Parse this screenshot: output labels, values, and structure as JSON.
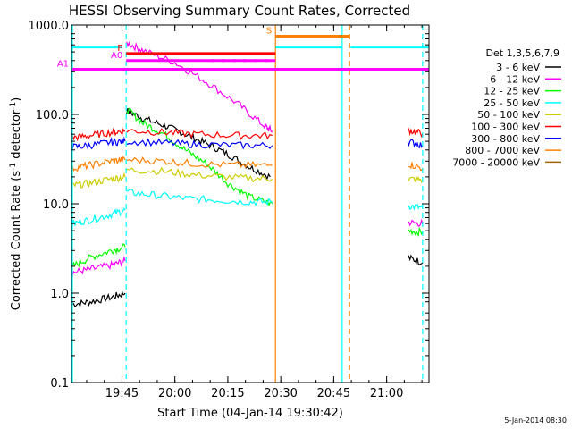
{
  "chart_data": {
    "type": "line",
    "title": "HESSI Observing Summary Count Rates, Corrected",
    "xlabel": "Start Time (04-Jan-14 19:30:42)",
    "ylabel_prefix": "Corrected Count Rate (s",
    "ylabel_sup1": "-1",
    "ylabel_mid": " detector",
    "ylabel_sup2": "-1",
    "ylabel_suffix": ")",
    "yscale": "log",
    "ylim": [
      0.1,
      1000
    ],
    "xlim": [
      19.5117,
      21.2
    ],
    "x_ticks": [
      {
        "value": 19.75,
        "label": "19:45"
      },
      {
        "value": 20.0,
        "label": "20:00"
      },
      {
        "value": 20.25,
        "label": "20:15"
      },
      {
        "value": 20.5,
        "label": "20:30"
      },
      {
        "value": 20.75,
        "label": "20:45"
      },
      {
        "value": 21.0,
        "label": "21:00"
      }
    ],
    "y_ticks": [
      {
        "value": 0.1,
        "label": "0.1"
      },
      {
        "value": 1,
        "label": "1.0"
      },
      {
        "value": 10,
        "label": "10.0"
      },
      {
        "value": 100,
        "label": "100.0"
      },
      {
        "value": 1000,
        "label": "1000.0"
      }
    ],
    "legend_title": "Det 1,3,5,6,7,9",
    "legend_position": "right",
    "date_stamp": "5-Jan-2014 08:30",
    "series": [
      {
        "name": "3 - 6 keV",
        "color": "#000000",
        "segments": [
          [
            [
              19.516,
              0.75
            ],
            [
              19.6,
              0.8
            ],
            [
              19.7,
              0.9
            ],
            [
              19.765,
              1.0
            ]
          ],
          [
            [
              19.772,
              110
            ],
            [
              19.85,
              90
            ],
            [
              19.95,
              75
            ],
            [
              20.05,
              60
            ],
            [
              20.15,
              47
            ],
            [
              20.25,
              36
            ],
            [
              20.35,
              26
            ],
            [
              20.45,
              20
            ]
          ],
          [
            [
              21.1,
              2.5
            ],
            [
              21.17,
              2.2
            ]
          ]
        ]
      },
      {
        "name": "6 - 12 keV",
        "color": "#ff00ff",
        "segments": [
          [
            [
              19.516,
              1.7
            ],
            [
              19.6,
              1.85
            ],
            [
              19.7,
              2.05
            ],
            [
              19.765,
              2.3
            ]
          ],
          [
            [
              19.772,
              630
            ],
            [
              19.85,
              520
            ],
            [
              20.0,
              380
            ],
            [
              20.15,
              230
            ],
            [
              20.3,
              130
            ],
            [
              20.42,
              75
            ],
            [
              20.46,
              65
            ]
          ],
          [
            [
              21.1,
              6.2
            ],
            [
              21.17,
              6.0
            ]
          ]
        ]
      },
      {
        "name": "12 - 25 keV",
        "color": "#00ff00",
        "segments": [
          [
            [
              19.516,
              2.0
            ],
            [
              19.6,
              2.5
            ],
            [
              19.7,
              3.0
            ],
            [
              19.765,
              3.3
            ]
          ],
          [
            [
              19.772,
              115
            ],
            [
              19.85,
              80
            ],
            [
              19.95,
              60
            ],
            [
              20.05,
              40
            ],
            [
              20.15,
              28
            ],
            [
              20.25,
              17
            ],
            [
              20.35,
              12
            ],
            [
              20.46,
              10
            ]
          ],
          [
            [
              21.1,
              5.0
            ],
            [
              21.17,
              4.8
            ]
          ]
        ]
      },
      {
        "name": "25 - 50 keV",
        "color": "#00ffff",
        "segments": [
          [
            [
              19.516,
              6.0
            ],
            [
              19.6,
              6.6
            ],
            [
              19.7,
              7.6
            ],
            [
              19.765,
              8.5
            ]
          ],
          [
            [
              19.772,
              13.5
            ],
            [
              19.9,
              12.5
            ],
            [
              20.05,
              11.5
            ],
            [
              20.2,
              11.0
            ],
            [
              20.35,
              10.5
            ],
            [
              20.46,
              10.5
            ]
          ],
          [
            [
              21.1,
              9.5
            ],
            [
              21.17,
              9.0
            ]
          ]
        ]
      },
      {
        "name": "50 - 100 keV",
        "color": "#cccc00",
        "segments": [
          [
            [
              19.516,
              16
            ],
            [
              19.6,
              17
            ],
            [
              19.7,
              19
            ],
            [
              19.765,
              20
            ]
          ],
          [
            [
              19.772,
              24
            ],
            [
              19.95,
              23
            ],
            [
              20.1,
              21
            ],
            [
              20.3,
              19.5
            ],
            [
              20.46,
              19
            ]
          ],
          [
            [
              21.1,
              19
            ],
            [
              21.17,
              18.5
            ]
          ]
        ]
      },
      {
        "name": "100 - 300 keV",
        "color": "#ff0000",
        "segments": [
          [
            [
              19.516,
              55
            ],
            [
              19.6,
              58
            ],
            [
              19.7,
              63
            ],
            [
              19.765,
              65
            ]
          ],
          [
            [
              19.772,
              66
            ],
            [
              19.95,
              63
            ],
            [
              20.1,
              60
            ],
            [
              20.3,
              58
            ],
            [
              20.46,
              58
            ]
          ],
          [
            [
              21.1,
              67
            ],
            [
              21.17,
              61
            ]
          ]
        ]
      },
      {
        "name": "300 - 800 keV",
        "color": "#0000ff",
        "segments": [
          [
            [
              19.516,
              43
            ],
            [
              19.6,
              45
            ],
            [
              19.7,
              49
            ],
            [
              19.765,
              50
            ]
          ],
          [
            [
              19.772,
              50
            ],
            [
              19.95,
              48
            ],
            [
              20.1,
              46
            ],
            [
              20.3,
              45
            ],
            [
              20.46,
              45
            ]
          ],
          [
            [
              21.1,
              50
            ],
            [
              21.17,
              45
            ]
          ]
        ]
      },
      {
        "name": "800 - 7000 keV",
        "color": "#ff8000",
        "segments": [
          [
            [
              19.516,
              25
            ],
            [
              19.6,
              27
            ],
            [
              19.7,
              30
            ],
            [
              19.765,
              31
            ]
          ],
          [
            [
              19.772,
              31
            ],
            [
              19.95,
              30
            ],
            [
              20.1,
              28
            ],
            [
              20.3,
              27
            ],
            [
              20.46,
              27
            ]
          ],
          [
            [
              21.1,
              28
            ],
            [
              21.17,
              25
            ]
          ]
        ]
      },
      {
        "name": "7000 - 20000 keV",
        "color": "#996600",
        "segments": []
      }
    ],
    "markers": [
      {
        "label": "S",
        "color": "#ff8000",
        "x1": 20.475,
        "x2": 20.825,
        "y": 750
      },
      {
        "label": "F",
        "color": "#ff0000",
        "x1": 19.77,
        "x2": 20.475,
        "y": 480
      },
      {
        "label": "A0",
        "color": "#ff00ff",
        "x1": 19.77,
        "x2": 20.475,
        "y": 400
      },
      {
        "label": "A1",
        "color": "#ff00ff",
        "x1": 19.516,
        "x2": 21.2,
        "y": 320
      }
    ],
    "attenuator_dots": {
      "color": "#ff00ff",
      "y": 400,
      "x": [
        20.18,
        20.23,
        20.28,
        20.33,
        20.38,
        20.43
      ]
    },
    "cyan_segments": [
      {
        "color": "#00ffff",
        "x1": 19.516,
        "x2": 19.75,
        "y": 560
      },
      {
        "color": "#00ffff",
        "x1": 20.475,
        "x2": 20.79,
        "y": 560
      },
      {
        "color": "#00ffff",
        "x1": 20.83,
        "x2": 21.2,
        "y": 560
      }
    ],
    "vertical_lines": [
      {
        "x": 19.516,
        "color": "#00ffff",
        "dashed": false
      },
      {
        "x": 19.77,
        "color": "#00ffff",
        "dashed": true
      },
      {
        "x": 20.475,
        "color": "#ff8000",
        "dashed": false
      },
      {
        "x": 20.79,
        "color": "#00ffff",
        "dashed": false
      },
      {
        "x": 20.825,
        "color": "#ff8000",
        "dashed": true
      },
      {
        "x": 21.17,
        "color": "#00ffff",
        "dashed": true
      }
    ]
  }
}
